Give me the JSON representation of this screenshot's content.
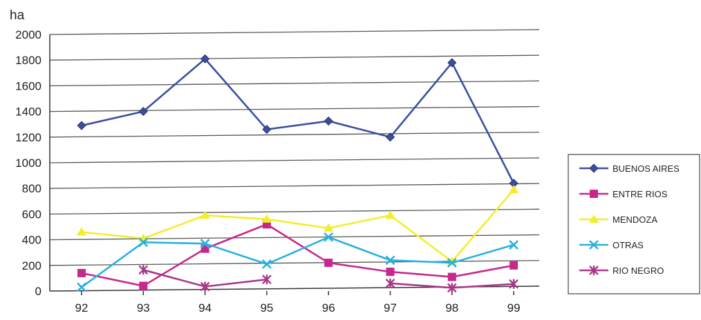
{
  "chart_data": {
    "type": "line",
    "ylabel": "ha",
    "xlabel": "",
    "categories": [
      "92",
      "93",
      "94",
      "95",
      "96",
      "97",
      "98",
      "99"
    ],
    "ylim": [
      0,
      2000
    ],
    "yticks": [
      0,
      200,
      400,
      600,
      800,
      1000,
      1200,
      1400,
      1600,
      1800,
      2000
    ],
    "grid": true,
    "legend_position": "right",
    "series": [
      {
        "name": "BUENOS AIRES",
        "color": "#3a4f9e",
        "marker": "diamond",
        "values": [
          1290,
          1400,
          1810,
          1260,
          1325,
          1200,
          1780,
          840
        ]
      },
      {
        "name": "ENTRE RIOS",
        "color": "#c8288c",
        "marker": "square",
        "values": [
          140,
          40,
          330,
          520,
          220,
          150,
          110,
          200
        ]
      },
      {
        "name": "MENDOZA",
        "color": "#f2ee2a",
        "marker": "triangle",
        "values": [
          460,
          410,
          590,
          560,
          490,
          590,
          230,
          790
        ]
      },
      {
        "name": "OTRAS",
        "color": "#2ab0e0",
        "marker": "x",
        "values": [
          30,
          380,
          370,
          210,
          420,
          240,
          220,
          360
        ]
      },
      {
        "name": "RIO NEGRO",
        "color": "#a8388a",
        "marker": "star",
        "values": [
          null,
          165,
          35,
          90,
          null,
          60,
          25,
          55
        ]
      }
    ]
  }
}
